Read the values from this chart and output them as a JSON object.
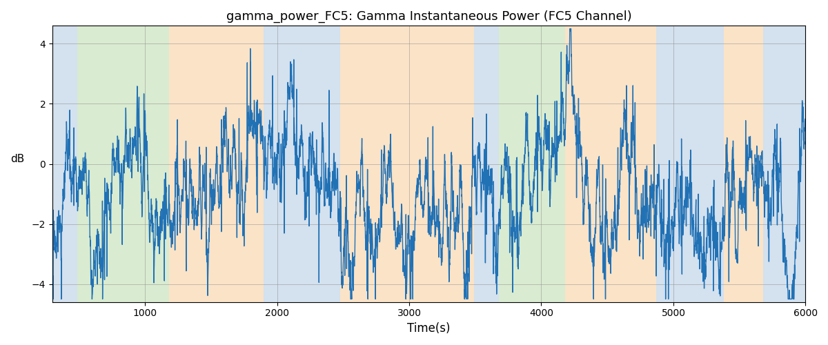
{
  "title": "gamma_power_FC5: Gamma Instantaneous Power (FC5 Channel)",
  "xlabel": "Time(s)",
  "ylabel": "dB",
  "xlim": [
    300,
    6000
  ],
  "ylim": [
    -4.6,
    4.6
  ],
  "yticks": [
    -4,
    -2,
    0,
    2,
    4
  ],
  "xticks": [
    1000,
    2000,
    3000,
    4000,
    5000,
    6000
  ],
  "line_color": "#2171b5",
  "line_width": 1.0,
  "background_bands": [
    {
      "xmin": 300,
      "xmax": 490,
      "color": "#aac4de",
      "alpha": 0.5
    },
    {
      "xmin": 490,
      "xmax": 1180,
      "color": "#b5d9a2",
      "alpha": 0.5
    },
    {
      "xmin": 1180,
      "xmax": 1900,
      "color": "#f6c990",
      "alpha": 0.5
    },
    {
      "xmin": 1900,
      "xmax": 2480,
      "color": "#aac4de",
      "alpha": 0.5
    },
    {
      "xmin": 2480,
      "xmax": 3490,
      "color": "#f6c990",
      "alpha": 0.5
    },
    {
      "xmin": 3490,
      "xmax": 3680,
      "color": "#aac4de",
      "alpha": 0.5
    },
    {
      "xmin": 3680,
      "xmax": 4180,
      "color": "#b5d9a2",
      "alpha": 0.5
    },
    {
      "xmin": 4180,
      "xmax": 4870,
      "color": "#f6c990",
      "alpha": 0.5
    },
    {
      "xmin": 4870,
      "xmax": 5380,
      "color": "#aac4de",
      "alpha": 0.5
    },
    {
      "xmin": 5380,
      "xmax": 5680,
      "color": "#f6c990",
      "alpha": 0.5
    },
    {
      "xmin": 5680,
      "xmax": 6000,
      "color": "#aac4de",
      "alpha": 0.5
    }
  ],
  "seed": 17,
  "n_points": 5700,
  "x_start": 300,
  "x_end": 6000,
  "figsize": [
    12,
    5
  ],
  "dpi": 100
}
